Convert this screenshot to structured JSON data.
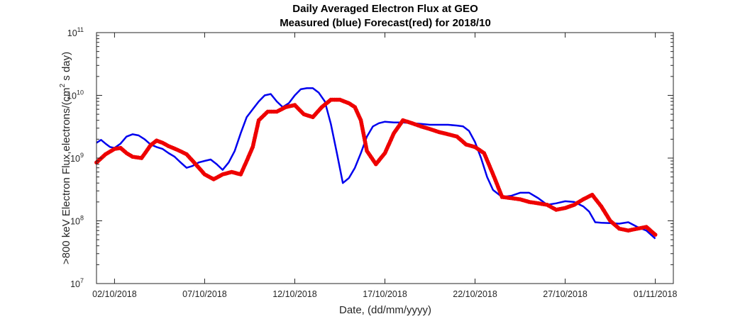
{
  "chart_data": {
    "type": "line",
    "title": "Daily Averaged Electron Flux at GEO",
    "subtitle": "Measured (blue) Forecast(red) for 2018/10",
    "xlabel": "Date, (dd/mm/yyyy)",
    "ylabel_main": ">800 keV Electron Flux,electrons/(cm",
    "ylabel_sup": "2",
    "ylabel_end": " s day)",
    "y_scale": "log",
    "ylim": [
      10000000.0,
      100000000000.0
    ],
    "xlim": [
      "2018-10-01",
      "2018-11-02"
    ],
    "grid": false,
    "y_ticks": [
      {
        "value": 10000000.0,
        "base": "10",
        "exp": "7"
      },
      {
        "value": 100000000.0,
        "base": "10",
        "exp": "8"
      },
      {
        "value": 1000000000.0,
        "base": "10",
        "exp": "9"
      },
      {
        "value": 10000000000.0,
        "base": "10",
        "exp": "10"
      },
      {
        "value": 100000000000.0,
        "base": "10",
        "exp": "11"
      }
    ],
    "x_ticks": [
      {
        "date": "2018-10-02",
        "label": "02/10/2018"
      },
      {
        "date": "2018-10-07",
        "label": "07/10/2018"
      },
      {
        "date": "2018-10-12",
        "label": "12/10/2018"
      },
      {
        "date": "2018-10-17",
        "label": "17/10/2018"
      },
      {
        "date": "2018-10-22",
        "label": "22/10/2018"
      },
      {
        "date": "2018-10-27",
        "label": "27/10/2018"
      },
      {
        "date": "2018-11-01",
        "label": "01/11/2018"
      }
    ],
    "series": [
      {
        "color": "#0000ee",
        "style": "line",
        "x": [
          "2018-10-01 00:00",
          "2018-10-01 06:00",
          "2018-10-01 12:00",
          "2018-10-01 18:00",
          "2018-10-02 00:00",
          "2018-10-02 08:00",
          "2018-10-02 16:00",
          "2018-10-03 00:00",
          "2018-10-03 08:00",
          "2018-10-03 16:00",
          "2018-10-04 00:00",
          "2018-10-04 08:00",
          "2018-10-04 16:00",
          "2018-10-05 00:00",
          "2018-10-05 08:00",
          "2018-10-05 16:00",
          "2018-10-06 00:00",
          "2018-10-06 08:00",
          "2018-10-06 16:00",
          "2018-10-07 00:00",
          "2018-10-07 08:00",
          "2018-10-07 16:00",
          "2018-10-08 00:00",
          "2018-10-08 08:00",
          "2018-10-08 16:00",
          "2018-10-09 00:00",
          "2018-10-09 08:00",
          "2018-10-09 16:00",
          "2018-10-10 00:00",
          "2018-10-10 08:00",
          "2018-10-10 16:00",
          "2018-10-11 00:00",
          "2018-10-11 08:00",
          "2018-10-11 16:00",
          "2018-10-12 00:00",
          "2018-10-12 08:00",
          "2018-10-12 16:00",
          "2018-10-13 00:00",
          "2018-10-13 08:00",
          "2018-10-13 16:00",
          "2018-10-14 00:00",
          "2018-10-14 08:00",
          "2018-10-14 16:00",
          "2018-10-15 00:00",
          "2018-10-15 08:00",
          "2018-10-15 16:00",
          "2018-10-16 00:00",
          "2018-10-16 08:00",
          "2018-10-16 16:00",
          "2018-10-17 00:00",
          "2018-10-17 12:00",
          "2018-10-18 00:00",
          "2018-10-18 12:00",
          "2018-10-19 00:00",
          "2018-10-19 12:00",
          "2018-10-20 00:00",
          "2018-10-20 12:00",
          "2018-10-21 00:00",
          "2018-10-21 08:00",
          "2018-10-21 16:00",
          "2018-10-22 00:00",
          "2018-10-22 08:00",
          "2018-10-22 16:00",
          "2018-10-23 00:00",
          "2018-10-23 12:00",
          "2018-10-24 00:00",
          "2018-10-24 12:00",
          "2018-10-25 00:00",
          "2018-10-25 12:00",
          "2018-10-26 00:00",
          "2018-10-26 12:00",
          "2018-10-27 00:00",
          "2018-10-27 12:00",
          "2018-10-28 00:00",
          "2018-10-28 08:00",
          "2018-10-28 16:00",
          "2018-10-29 00:00",
          "2018-10-29 12:00",
          "2018-10-30 00:00",
          "2018-10-30 12:00",
          "2018-10-31 00:00",
          "2018-10-31 12:00",
          "2018-11-01 00:00"
        ],
        "values": [
          1750000000.0,
          1950000000.0,
          1700000000.0,
          1500000000.0,
          1450000000.0,
          1700000000.0,
          2200000000.0,
          2400000000.0,
          2300000000.0,
          2000000000.0,
          1650000000.0,
          1500000000.0,
          1400000000.0,
          1200000000.0,
          1050000000.0,
          850000000.0,
          700000000.0,
          750000000.0,
          850000000.0,
          900000000.0,
          950000000.0,
          800000000.0,
          650000000.0,
          850000000.0,
          1300000000.0,
          2500000000.0,
          4500000000.0,
          6000000000.0,
          8000000000.0,
          10000000000.0,
          10500000000.0,
          8000000000.0,
          6500000000.0,
          7500000000.0,
          10000000000.0,
          12500000000.0,
          13000000000.0,
          13000000000.0,
          11000000000.0,
          8000000000.0,
          3500000000.0,
          1200000000.0,
          400000000.0,
          480000000.0,
          700000000.0,
          1200000000.0,
          2200000000.0,
          3200000000.0,
          3600000000.0,
          3800000000.0,
          3700000000.0,
          3700000000.0,
          3600000000.0,
          3500000000.0,
          3400000000.0,
          3400000000.0,
          3400000000.0,
          3300000000.0,
          3200000000.0,
          2700000000.0,
          1800000000.0,
          1000000000.0,
          500000000.0,
          310000000.0,
          240000000.0,
          250000000.0,
          280000000.0,
          280000000.0,
          230000000.0,
          180000000.0,
          190000000.0,
          205000000.0,
          200000000.0,
          170000000.0,
          140000000.0,
          95000000.0,
          93000000.0,
          92000000.0,
          90000000.0,
          95000000.0,
          80000000.0,
          70000000.0,
          52000000.0
        ]
      },
      {
        "color": "#ee0000",
        "style": "markers",
        "x": [
          "2018-10-01 00:00",
          "2018-10-01 12:00",
          "2018-10-02 00:00",
          "2018-10-02 08:00",
          "2018-10-02 16:00",
          "2018-10-03 00:00",
          "2018-10-03 12:00",
          "2018-10-04 00:00",
          "2018-10-04 08:00",
          "2018-10-04 16:00",
          "2018-10-05 00:00",
          "2018-10-05 12:00",
          "2018-10-06 00:00",
          "2018-10-06 12:00",
          "2018-10-07 00:00",
          "2018-10-07 12:00",
          "2018-10-08 00:00",
          "2018-10-08 12:00",
          "2018-10-09 00:00",
          "2018-10-09 08:00",
          "2018-10-09 16:00",
          "2018-10-10 00:00",
          "2018-10-10 12:00",
          "2018-10-11 00:00",
          "2018-10-11 12:00",
          "2018-10-12 00:00",
          "2018-10-12 12:00",
          "2018-10-13 00:00",
          "2018-10-13 12:00",
          "2018-10-14 00:00",
          "2018-10-14 12:00",
          "2018-10-15 00:00",
          "2018-10-15 08:00",
          "2018-10-15 16:00",
          "2018-10-16 00:00",
          "2018-10-16 12:00",
          "2018-10-17 00:00",
          "2018-10-17 12:00",
          "2018-10-18 00:00",
          "2018-10-18 12:00",
          "2018-10-19 00:00",
          "2018-10-19 12:00",
          "2018-10-20 00:00",
          "2018-10-20 12:00",
          "2018-10-21 00:00",
          "2018-10-21 12:00",
          "2018-10-22 00:00",
          "2018-10-22 12:00",
          "2018-10-23 00:00",
          "2018-10-23 12:00",
          "2018-10-24 00:00",
          "2018-10-24 12:00",
          "2018-10-25 00:00",
          "2018-10-25 12:00",
          "2018-10-26 00:00",
          "2018-10-26 12:00",
          "2018-10-27 00:00",
          "2018-10-27 12:00",
          "2018-10-28 00:00",
          "2018-10-28 12:00",
          "2018-10-29 00:00",
          "2018-10-29 12:00",
          "2018-10-30 00:00",
          "2018-10-30 12:00",
          "2018-10-31 00:00",
          "2018-10-31 12:00",
          "2018-11-01 00:00"
        ],
        "values": [
          850000000.0,
          1150000000.0,
          1400000000.0,
          1450000000.0,
          1200000000.0,
          1050000000.0,
          1000000000.0,
          1600000000.0,
          1900000000.0,
          1750000000.0,
          1550000000.0,
          1350000000.0,
          1150000000.0,
          800000000.0,
          550000000.0,
          460000000.0,
          550000000.0,
          600000000.0,
          550000000.0,
          900000000.0,
          1500000000.0,
          4000000000.0,
          5500000000.0,
          5500000000.0,
          6500000000.0,
          7000000000.0,
          5000000000.0,
          4500000000.0,
          6500000000.0,
          8500000000.0,
          8500000000.0,
          7500000000.0,
          6500000000.0,
          4000000000.0,
          1300000000.0,
          800000000.0,
          1200000000.0,
          2500000000.0,
          4000000000.0,
          3600000000.0,
          3200000000.0,
          2900000000.0,
          2600000000.0,
          2400000000.0,
          2200000000.0,
          1650000000.0,
          1500000000.0,
          1200000000.0,
          550000000.0,
          240000000.0,
          230000000.0,
          220000000.0,
          200000000.0,
          190000000.0,
          180000000.0,
          150000000.0,
          160000000.0,
          180000000.0,
          220000000.0,
          260000000.0,
          170000000.0,
          100000000.0,
          75000000.0,
          70000000.0,
          75000000.0,
          80000000.0,
          60000000.0
        ]
      }
    ]
  }
}
